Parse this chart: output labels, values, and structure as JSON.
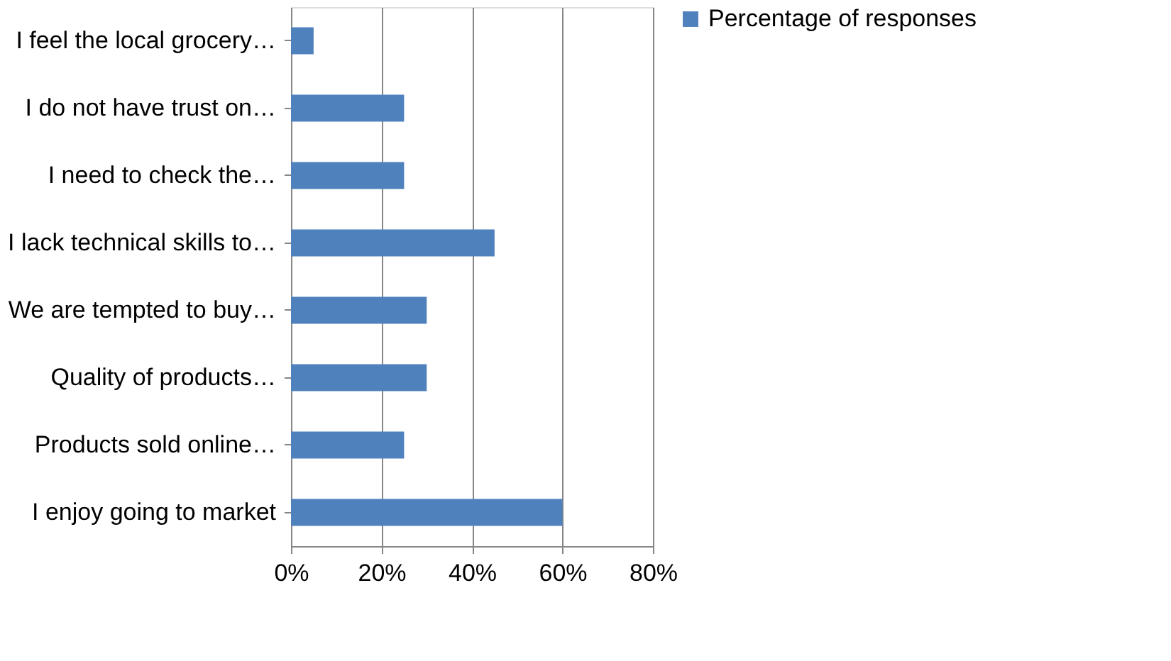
{
  "chart_data": {
    "type": "bar",
    "orientation": "horizontal",
    "categories": [
      "I feel the local grocery…",
      "I do not have trust on…",
      "I need to check the…",
      "I lack technical skills to…",
      "We are tempted to buy…",
      "Quality of products…",
      "Products sold online…",
      "I enjoy going to market"
    ],
    "series": [
      {
        "name": "Percentage of responses",
        "color": "#4f81bd",
        "values": [
          5,
          25,
          25,
          45,
          30,
          30,
          25,
          60
        ]
      }
    ],
    "xlim": [
      0,
      80
    ],
    "xticks": [
      {
        "value": 0,
        "label": "0%"
      },
      {
        "value": 20,
        "label": "20%"
      },
      {
        "value": 40,
        "label": "40%"
      },
      {
        "value": 60,
        "label": "60%"
      },
      {
        "value": 80,
        "label": "80%"
      }
    ],
    "grid": "x",
    "legend": "right"
  }
}
